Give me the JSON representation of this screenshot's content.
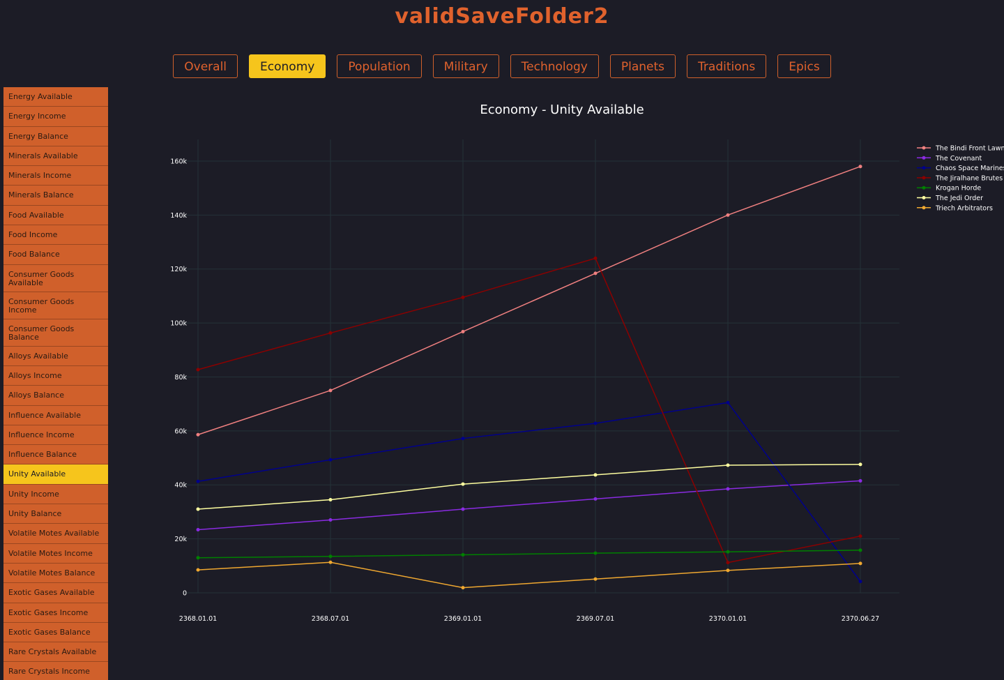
{
  "app": {
    "title": "validSaveFolder2"
  },
  "tabs": [
    {
      "label": "Overall",
      "active": false
    },
    {
      "label": "Economy",
      "active": true
    },
    {
      "label": "Population",
      "active": false
    },
    {
      "label": "Military",
      "active": false
    },
    {
      "label": "Technology",
      "active": false
    },
    {
      "label": "Planets",
      "active": false
    },
    {
      "label": "Traditions",
      "active": false
    },
    {
      "label": "Epics",
      "active": false
    }
  ],
  "sidebar": {
    "items": [
      {
        "label": "Energy Available"
      },
      {
        "label": "Energy Income"
      },
      {
        "label": "Energy Balance"
      },
      {
        "label": "Minerals Available"
      },
      {
        "label": "Minerals Income"
      },
      {
        "label": "Minerals Balance"
      },
      {
        "label": "Food Available"
      },
      {
        "label": "Food Income"
      },
      {
        "label": "Food Balance"
      },
      {
        "label": "Consumer Goods Available"
      },
      {
        "label": "Consumer Goods Income"
      },
      {
        "label": "Consumer Goods Balance"
      },
      {
        "label": "Alloys Available"
      },
      {
        "label": "Alloys Income"
      },
      {
        "label": "Alloys Balance"
      },
      {
        "label": "Influence Available"
      },
      {
        "label": "Influence Income"
      },
      {
        "label": "Influence Balance"
      },
      {
        "label": "Unity Available",
        "active": true
      },
      {
        "label": "Unity Income"
      },
      {
        "label": "Unity Balance"
      },
      {
        "label": "Volatile Motes Available"
      },
      {
        "label": "Volatile Motes Income"
      },
      {
        "label": "Volatile Motes Balance"
      },
      {
        "label": "Exotic Gases Available"
      },
      {
        "label": "Exotic Gases Income"
      },
      {
        "label": "Exotic Gases Balance"
      },
      {
        "label": "Rare Crystals Available"
      },
      {
        "label": "Rare Crystals Income"
      }
    ]
  },
  "colors": {
    "accent": "#d0602b",
    "active": "#f6c51c",
    "background": "#1c1c26",
    "grid": "#2a3a3c"
  },
  "chart_data": {
    "type": "line",
    "title": "Economy - Unity Available",
    "xlabel": "",
    "ylabel": "",
    "x": [
      "2368.01.01",
      "2368.07.01",
      "2369.01.01",
      "2369.07.01",
      "2370.01.01",
      "2370.06.27"
    ],
    "ylim": [
      0,
      168000
    ],
    "yticks": [
      0,
      20000,
      40000,
      60000,
      80000,
      100000,
      120000,
      140000,
      160000
    ],
    "ytick_labels": [
      "0",
      "20k",
      "40k",
      "60k",
      "80k",
      "100k",
      "120k",
      "140k",
      "160k"
    ],
    "grid": true,
    "legend": "top-right",
    "series": [
      {
        "name": "The Bindi Front Lawn",
        "color": "#f08080",
        "values": [
          58600,
          75000,
          96800,
          118400,
          140000,
          158000
        ]
      },
      {
        "name": "The Covenant",
        "color": "#8a2be2",
        "values": [
          23400,
          27000,
          31000,
          34800,
          38500,
          41500
        ]
      },
      {
        "name": "Chaos Space Marines",
        "color": "#00008b",
        "values": [
          41300,
          49300,
          57200,
          62800,
          70500,
          4200
        ]
      },
      {
        "name": "The Jiralhane Brutes",
        "color": "#8b0000",
        "values": [
          82700,
          96300,
          109500,
          124000,
          11200,
          21000
        ]
      },
      {
        "name": "Krogan Horde",
        "color": "#008000",
        "values": [
          13000,
          13500,
          14100,
          14700,
          15200,
          15800
        ]
      },
      {
        "name": "The Jedi Order",
        "color": "#ffffa0",
        "values": [
          31000,
          34500,
          40300,
          43700,
          47300,
          47600
        ]
      },
      {
        "name": "Triech Arbitrators",
        "color": "#f0a830",
        "values": [
          8500,
          11300,
          1900,
          5100,
          8300,
          10900
        ]
      }
    ]
  }
}
